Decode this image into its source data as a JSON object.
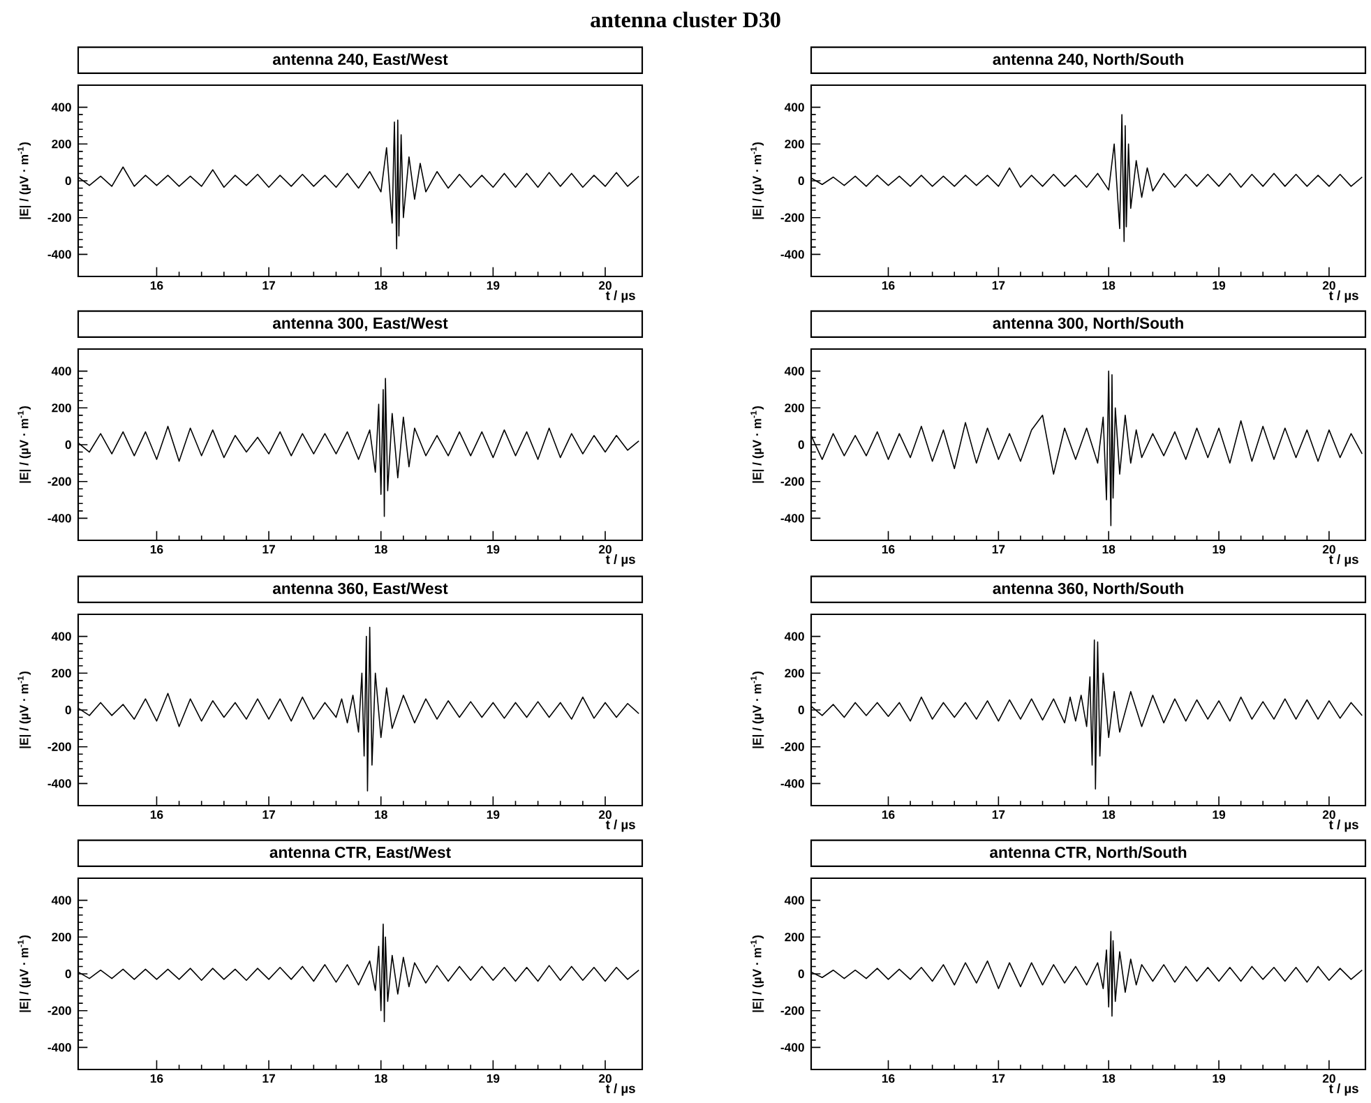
{
  "chart_data": [
    {
      "type": "line",
      "title": "antenna 240, East/West",
      "xlabel": "t / µs",
      "ylabel": "|E| / (µV · m$^{-1}$)",
      "color": "#000000",
      "line_style": "solid",
      "annotations": [
        "antenna cluster D30"
      ],
      "xlim": [
        15.3,
        20.33
      ],
      "ylim": [
        -520,
        520
      ],
      "xticks": [
        16,
        17,
        18,
        19,
        20
      ],
      "yticks": [
        -400,
        -200,
        0,
        200,
        400
      ],
      "x": [
        15.3,
        15.4,
        15.5,
        15.6,
        15.7,
        15.8,
        15.9,
        16.0,
        16.1,
        16.2,
        16.3,
        16.4,
        16.5,
        16.6,
        16.7,
        16.8,
        16.9,
        17.0,
        17.1,
        17.2,
        17.3,
        17.4,
        17.5,
        17.6,
        17.7,
        17.8,
        17.9,
        18.0,
        18.05,
        18.1,
        18.12,
        18.14,
        18.15,
        18.16,
        18.18,
        18.2,
        18.25,
        18.3,
        18.35,
        18.4,
        18.5,
        18.6,
        18.7,
        18.8,
        18.9,
        19.0,
        19.1,
        19.2,
        19.3,
        19.4,
        19.5,
        19.6,
        19.7,
        19.8,
        19.9,
        20.0,
        20.1,
        20.2,
        20.3
      ],
      "values": [
        20,
        -25,
        25,
        -30,
        75,
        -30,
        30,
        -25,
        30,
        -30,
        25,
        -30,
        60,
        -35,
        30,
        -25,
        35,
        -35,
        30,
        -30,
        35,
        -30,
        30,
        -35,
        40,
        -40,
        50,
        -60,
        180,
        -230,
        320,
        -370,
        330,
        -300,
        250,
        -200,
        130,
        -100,
        95,
        -60,
        50,
        -40,
        35,
        -35,
        30,
        -35,
        40,
        -35,
        40,
        -35,
        45,
        -30,
        40,
        -35,
        30,
        -30,
        45,
        -30,
        25
      ]
    },
    {
      "type": "line",
      "title": "antenna 240, North/South",
      "xlabel": "t / µs",
      "ylabel": "|E| / (µV · m$^{-1}$)",
      "color": "#000000",
      "line_style": "solid",
      "xlim": [
        15.3,
        20.33
      ],
      "ylim": [
        -520,
        520
      ],
      "xticks": [
        16,
        17,
        18,
        19,
        20
      ],
      "yticks": [
        -400,
        -200,
        0,
        200,
        400
      ],
      "x": [
        15.3,
        15.4,
        15.5,
        15.6,
        15.7,
        15.8,
        15.9,
        16.0,
        16.1,
        16.2,
        16.3,
        16.4,
        16.5,
        16.6,
        16.7,
        16.8,
        16.9,
        17.0,
        17.1,
        17.2,
        17.3,
        17.4,
        17.5,
        17.6,
        17.7,
        17.8,
        17.9,
        18.0,
        18.05,
        18.1,
        18.12,
        18.14,
        18.15,
        18.16,
        18.18,
        18.2,
        18.25,
        18.3,
        18.35,
        18.4,
        18.5,
        18.6,
        18.7,
        18.8,
        18.9,
        19.0,
        19.1,
        19.2,
        19.3,
        19.4,
        19.5,
        19.6,
        19.7,
        19.8,
        19.9,
        20.0,
        20.1,
        20.2,
        20.3
      ],
      "values": [
        15,
        -20,
        20,
        -25,
        25,
        -30,
        30,
        -25,
        25,
        -30,
        30,
        -30,
        25,
        -30,
        30,
        -25,
        30,
        -30,
        70,
        -35,
        30,
        -30,
        35,
        -30,
        30,
        -35,
        40,
        -50,
        200,
        -260,
        360,
        -330,
        300,
        -250,
        200,
        -150,
        110,
        -90,
        70,
        -55,
        40,
        -35,
        35,
        -30,
        35,
        -30,
        40,
        -35,
        35,
        -30,
        40,
        -30,
        35,
        -30,
        30,
        -30,
        35,
        -30,
        20
      ]
    },
    {
      "type": "line",
      "title": "antenna 300, East/West",
      "xlabel": "t / µs",
      "ylabel": "|E| / (µV · m$^{-1}$)",
      "color": "#000000",
      "line_style": "solid",
      "xlim": [
        15.3,
        20.33
      ],
      "ylim": [
        -520,
        520
      ],
      "xticks": [
        16,
        17,
        18,
        19,
        20
      ],
      "yticks": [
        -400,
        -200,
        0,
        200,
        400
      ],
      "x": [
        15.3,
        15.4,
        15.5,
        15.6,
        15.7,
        15.8,
        15.9,
        16.0,
        16.1,
        16.2,
        16.3,
        16.4,
        16.5,
        16.6,
        16.7,
        16.8,
        16.9,
        17.0,
        17.1,
        17.2,
        17.3,
        17.4,
        17.5,
        17.6,
        17.7,
        17.8,
        17.9,
        17.95,
        17.98,
        18.0,
        18.02,
        18.03,
        18.04,
        18.06,
        18.1,
        18.15,
        18.2,
        18.25,
        18.3,
        18.4,
        18.5,
        18.6,
        18.7,
        18.8,
        18.9,
        19.0,
        19.1,
        19.2,
        19.3,
        19.4,
        19.5,
        19.6,
        19.7,
        19.8,
        19.9,
        20.0,
        20.1,
        20.2,
        20.3
      ],
      "values": [
        10,
        -40,
        60,
        -50,
        70,
        -60,
        70,
        -80,
        100,
        -90,
        90,
        -60,
        80,
        -70,
        50,
        -40,
        40,
        -50,
        70,
        -60,
        60,
        -50,
        60,
        -50,
        70,
        -80,
        80,
        -150,
        220,
        -270,
        300,
        -390,
        360,
        -250,
        170,
        -180,
        150,
        -120,
        90,
        -60,
        50,
        -60,
        70,
        -60,
        70,
        -70,
        80,
        -60,
        70,
        -80,
        90,
        -70,
        60,
        -50,
        50,
        -40,
        50,
        -30,
        20
      ]
    },
    {
      "type": "line",
      "title": "antenna 300, North/South",
      "xlabel": "t / µs",
      "ylabel": "|E| / (µV · m$^{-1}$)",
      "color": "#000000",
      "line_style": "solid",
      "xlim": [
        15.3,
        20.33
      ],
      "ylim": [
        -520,
        520
      ],
      "xticks": [
        16,
        17,
        18,
        19,
        20
      ],
      "yticks": [
        -400,
        -200,
        0,
        200,
        400
      ],
      "x": [
        15.3,
        15.4,
        15.5,
        15.6,
        15.7,
        15.8,
        15.9,
        16.0,
        16.1,
        16.2,
        16.3,
        16.4,
        16.5,
        16.6,
        16.7,
        16.8,
        16.9,
        17.0,
        17.1,
        17.2,
        17.3,
        17.4,
        17.5,
        17.6,
        17.7,
        17.8,
        17.9,
        17.95,
        17.98,
        18.0,
        18.02,
        18.03,
        18.04,
        18.06,
        18.1,
        18.15,
        18.2,
        18.25,
        18.3,
        18.4,
        18.5,
        18.6,
        18.7,
        18.8,
        18.9,
        19.0,
        19.1,
        19.2,
        19.3,
        19.4,
        19.5,
        19.6,
        19.7,
        19.8,
        19.9,
        20.0,
        20.1,
        20.2,
        20.3
      ],
      "values": [
        50,
        -80,
        60,
        -60,
        50,
        -60,
        70,
        -80,
        60,
        -70,
        100,
        -90,
        80,
        -130,
        120,
        -100,
        90,
        -80,
        60,
        -90,
        80,
        160,
        -160,
        90,
        -80,
        90,
        -100,
        150,
        -300,
        400,
        -440,
        380,
        -290,
        200,
        -160,
        160,
        -100,
        80,
        -70,
        60,
        -60,
        70,
        -80,
        90,
        -70,
        90,
        -100,
        130,
        -90,
        100,
        -80,
        90,
        -70,
        80,
        -90,
        80,
        -70,
        60,
        -50
      ]
    },
    {
      "type": "line",
      "title": "antenna 360, East/West",
      "xlabel": "t / µs",
      "ylabel": "|E| / (µV · m$^{-1}$)",
      "color": "#000000",
      "line_style": "solid",
      "xlim": [
        15.3,
        20.33
      ],
      "ylim": [
        -520,
        520
      ],
      "xticks": [
        16,
        17,
        18,
        19,
        20
      ],
      "yticks": [
        -400,
        -200,
        0,
        200,
        400
      ],
      "x": [
        15.3,
        15.4,
        15.5,
        15.6,
        15.7,
        15.8,
        15.9,
        16.0,
        16.1,
        16.2,
        16.3,
        16.4,
        16.5,
        16.6,
        16.7,
        16.8,
        16.9,
        17.0,
        17.1,
        17.2,
        17.3,
        17.4,
        17.5,
        17.6,
        17.65,
        17.7,
        17.75,
        17.8,
        17.83,
        17.85,
        17.87,
        17.88,
        17.9,
        17.92,
        17.95,
        18.0,
        18.05,
        18.1,
        18.2,
        18.3,
        18.4,
        18.5,
        18.6,
        18.7,
        18.8,
        18.9,
        19.0,
        19.1,
        19.2,
        19.3,
        19.4,
        19.5,
        19.6,
        19.7,
        19.8,
        19.9,
        20.0,
        20.1,
        20.2,
        20.3
      ],
      "values": [
        10,
        -30,
        40,
        -30,
        30,
        -50,
        60,
        -60,
        90,
        -90,
        60,
        -60,
        50,
        -40,
        40,
        -50,
        60,
        -50,
        60,
        -60,
        70,
        -50,
        40,
        -40,
        60,
        -70,
        80,
        -120,
        200,
        -250,
        400,
        -440,
        450,
        -300,
        200,
        -150,
        120,
        -100,
        80,
        -70,
        60,
        -50,
        50,
        -40,
        45,
        -40,
        40,
        -45,
        40,
        -40,
        45,
        -40,
        40,
        -50,
        70,
        -45,
        40,
        -40,
        35,
        -20
      ]
    },
    {
      "type": "line",
      "title": "antenna 360, North/South",
      "xlabel": "t / µs",
      "ylabel": "|E| / (µV · m$^{-1}$)",
      "color": "#000000",
      "line_style": "solid",
      "xlim": [
        15.3,
        20.33
      ],
      "ylim": [
        -520,
        520
      ],
      "xticks": [
        16,
        17,
        18,
        19,
        20
      ],
      "yticks": [
        -400,
        -200,
        0,
        200,
        400
      ],
      "x": [
        15.3,
        15.4,
        15.5,
        15.6,
        15.7,
        15.8,
        15.9,
        16.0,
        16.1,
        16.2,
        16.3,
        16.4,
        16.5,
        16.6,
        16.7,
        16.8,
        16.9,
        17.0,
        17.1,
        17.2,
        17.3,
        17.4,
        17.5,
        17.6,
        17.65,
        17.7,
        17.75,
        17.8,
        17.83,
        17.85,
        17.87,
        17.88,
        17.9,
        17.92,
        17.95,
        18.0,
        18.05,
        18.1,
        18.2,
        18.3,
        18.4,
        18.5,
        18.6,
        18.7,
        18.8,
        18.9,
        19.0,
        19.1,
        19.2,
        19.3,
        19.4,
        19.5,
        19.6,
        19.7,
        19.8,
        19.9,
        20.0,
        20.1,
        20.2,
        20.3
      ],
      "values": [
        20,
        -30,
        30,
        -40,
        40,
        -30,
        40,
        -35,
        40,
        -60,
        70,
        -50,
        40,
        -40,
        40,
        -50,
        50,
        -60,
        55,
        -50,
        60,
        -55,
        60,
        -70,
        70,
        -60,
        80,
        -90,
        180,
        -300,
        380,
        -430,
        370,
        -250,
        200,
        -150,
        100,
        -120,
        100,
        -90,
        80,
        -70,
        60,
        -60,
        55,
        -50,
        50,
        -60,
        70,
        -50,
        45,
        -50,
        60,
        -50,
        55,
        -50,
        50,
        -45,
        40,
        -30
      ]
    },
    {
      "type": "line",
      "title": "antenna CTR, East/West",
      "xlabel": "t / µs",
      "ylabel": "|E| / (µV · m$^{-1}$)",
      "color": "#000000",
      "line_style": "solid",
      "xlim": [
        15.3,
        20.33
      ],
      "ylim": [
        -520,
        520
      ],
      "xticks": [
        16,
        17,
        18,
        19,
        20
      ],
      "yticks": [
        -400,
        -200,
        0,
        200,
        400
      ],
      "x": [
        15.3,
        15.4,
        15.5,
        15.6,
        15.7,
        15.8,
        15.9,
        16.0,
        16.1,
        16.2,
        16.3,
        16.4,
        16.5,
        16.6,
        16.7,
        16.8,
        16.9,
        17.0,
        17.1,
        17.2,
        17.3,
        17.4,
        17.5,
        17.6,
        17.7,
        17.8,
        17.9,
        17.95,
        17.98,
        18.0,
        18.02,
        18.03,
        18.04,
        18.06,
        18.1,
        18.15,
        18.2,
        18.25,
        18.3,
        18.4,
        18.5,
        18.6,
        18.7,
        18.8,
        18.9,
        19.0,
        19.1,
        19.2,
        19.3,
        19.4,
        19.5,
        19.6,
        19.7,
        19.8,
        19.9,
        20.0,
        20.1,
        20.2,
        20.3
      ],
      "values": [
        10,
        -25,
        20,
        -25,
        25,
        -30,
        25,
        -30,
        25,
        -30,
        30,
        -35,
        30,
        -30,
        25,
        -35,
        30,
        -30,
        35,
        -30,
        40,
        -40,
        50,
        -45,
        50,
        -60,
        70,
        -90,
        150,
        -200,
        270,
        -260,
        200,
        -150,
        100,
        -110,
        90,
        -70,
        60,
        -50,
        45,
        -40,
        40,
        -35,
        40,
        -35,
        35,
        -40,
        35,
        -40,
        45,
        -35,
        40,
        -35,
        35,
        -40,
        35,
        -30,
        20
      ]
    },
    {
      "type": "line",
      "title": "antenna CTR, North/South",
      "xlabel": "t / µs",
      "ylabel": "|E| / (µV · m$^{-1}$)",
      "color": "#000000",
      "line_style": "solid",
      "xlim": [
        15.3,
        20.33
      ],
      "ylim": [
        -520,
        520
      ],
      "xticks": [
        16,
        17,
        18,
        19,
        20
      ],
      "yticks": [
        -400,
        -200,
        0,
        200,
        400
      ],
      "x": [
        15.3,
        15.4,
        15.5,
        15.6,
        15.7,
        15.8,
        15.9,
        16.0,
        16.1,
        16.2,
        16.3,
        16.4,
        16.5,
        16.6,
        16.7,
        16.8,
        16.9,
        17.0,
        17.1,
        17.2,
        17.3,
        17.4,
        17.5,
        17.6,
        17.7,
        17.8,
        17.9,
        17.95,
        17.98,
        18.0,
        18.02,
        18.03,
        18.04,
        18.06,
        18.1,
        18.15,
        18.2,
        18.25,
        18.3,
        18.4,
        18.5,
        18.6,
        18.7,
        18.8,
        18.9,
        19.0,
        19.1,
        19.2,
        19.3,
        19.4,
        19.5,
        19.6,
        19.7,
        19.8,
        19.9,
        20.0,
        20.1,
        20.2,
        20.3
      ],
      "values": [
        10,
        -20,
        20,
        -25,
        20,
        -25,
        30,
        -30,
        25,
        -30,
        35,
        -40,
        50,
        -60,
        60,
        -50,
        70,
        -80,
        60,
        -70,
        60,
        -60,
        50,
        -50,
        40,
        -60,
        60,
        -80,
        130,
        -180,
        230,
        -230,
        180,
        -150,
        120,
        -100,
        80,
        -60,
        50,
        -40,
        50,
        -45,
        40,
        -40,
        35,
        -40,
        35,
        -40,
        40,
        -30,
        35,
        -40,
        35,
        -45,
        40,
        -35,
        30,
        -30,
        20
      ]
    }
  ]
}
